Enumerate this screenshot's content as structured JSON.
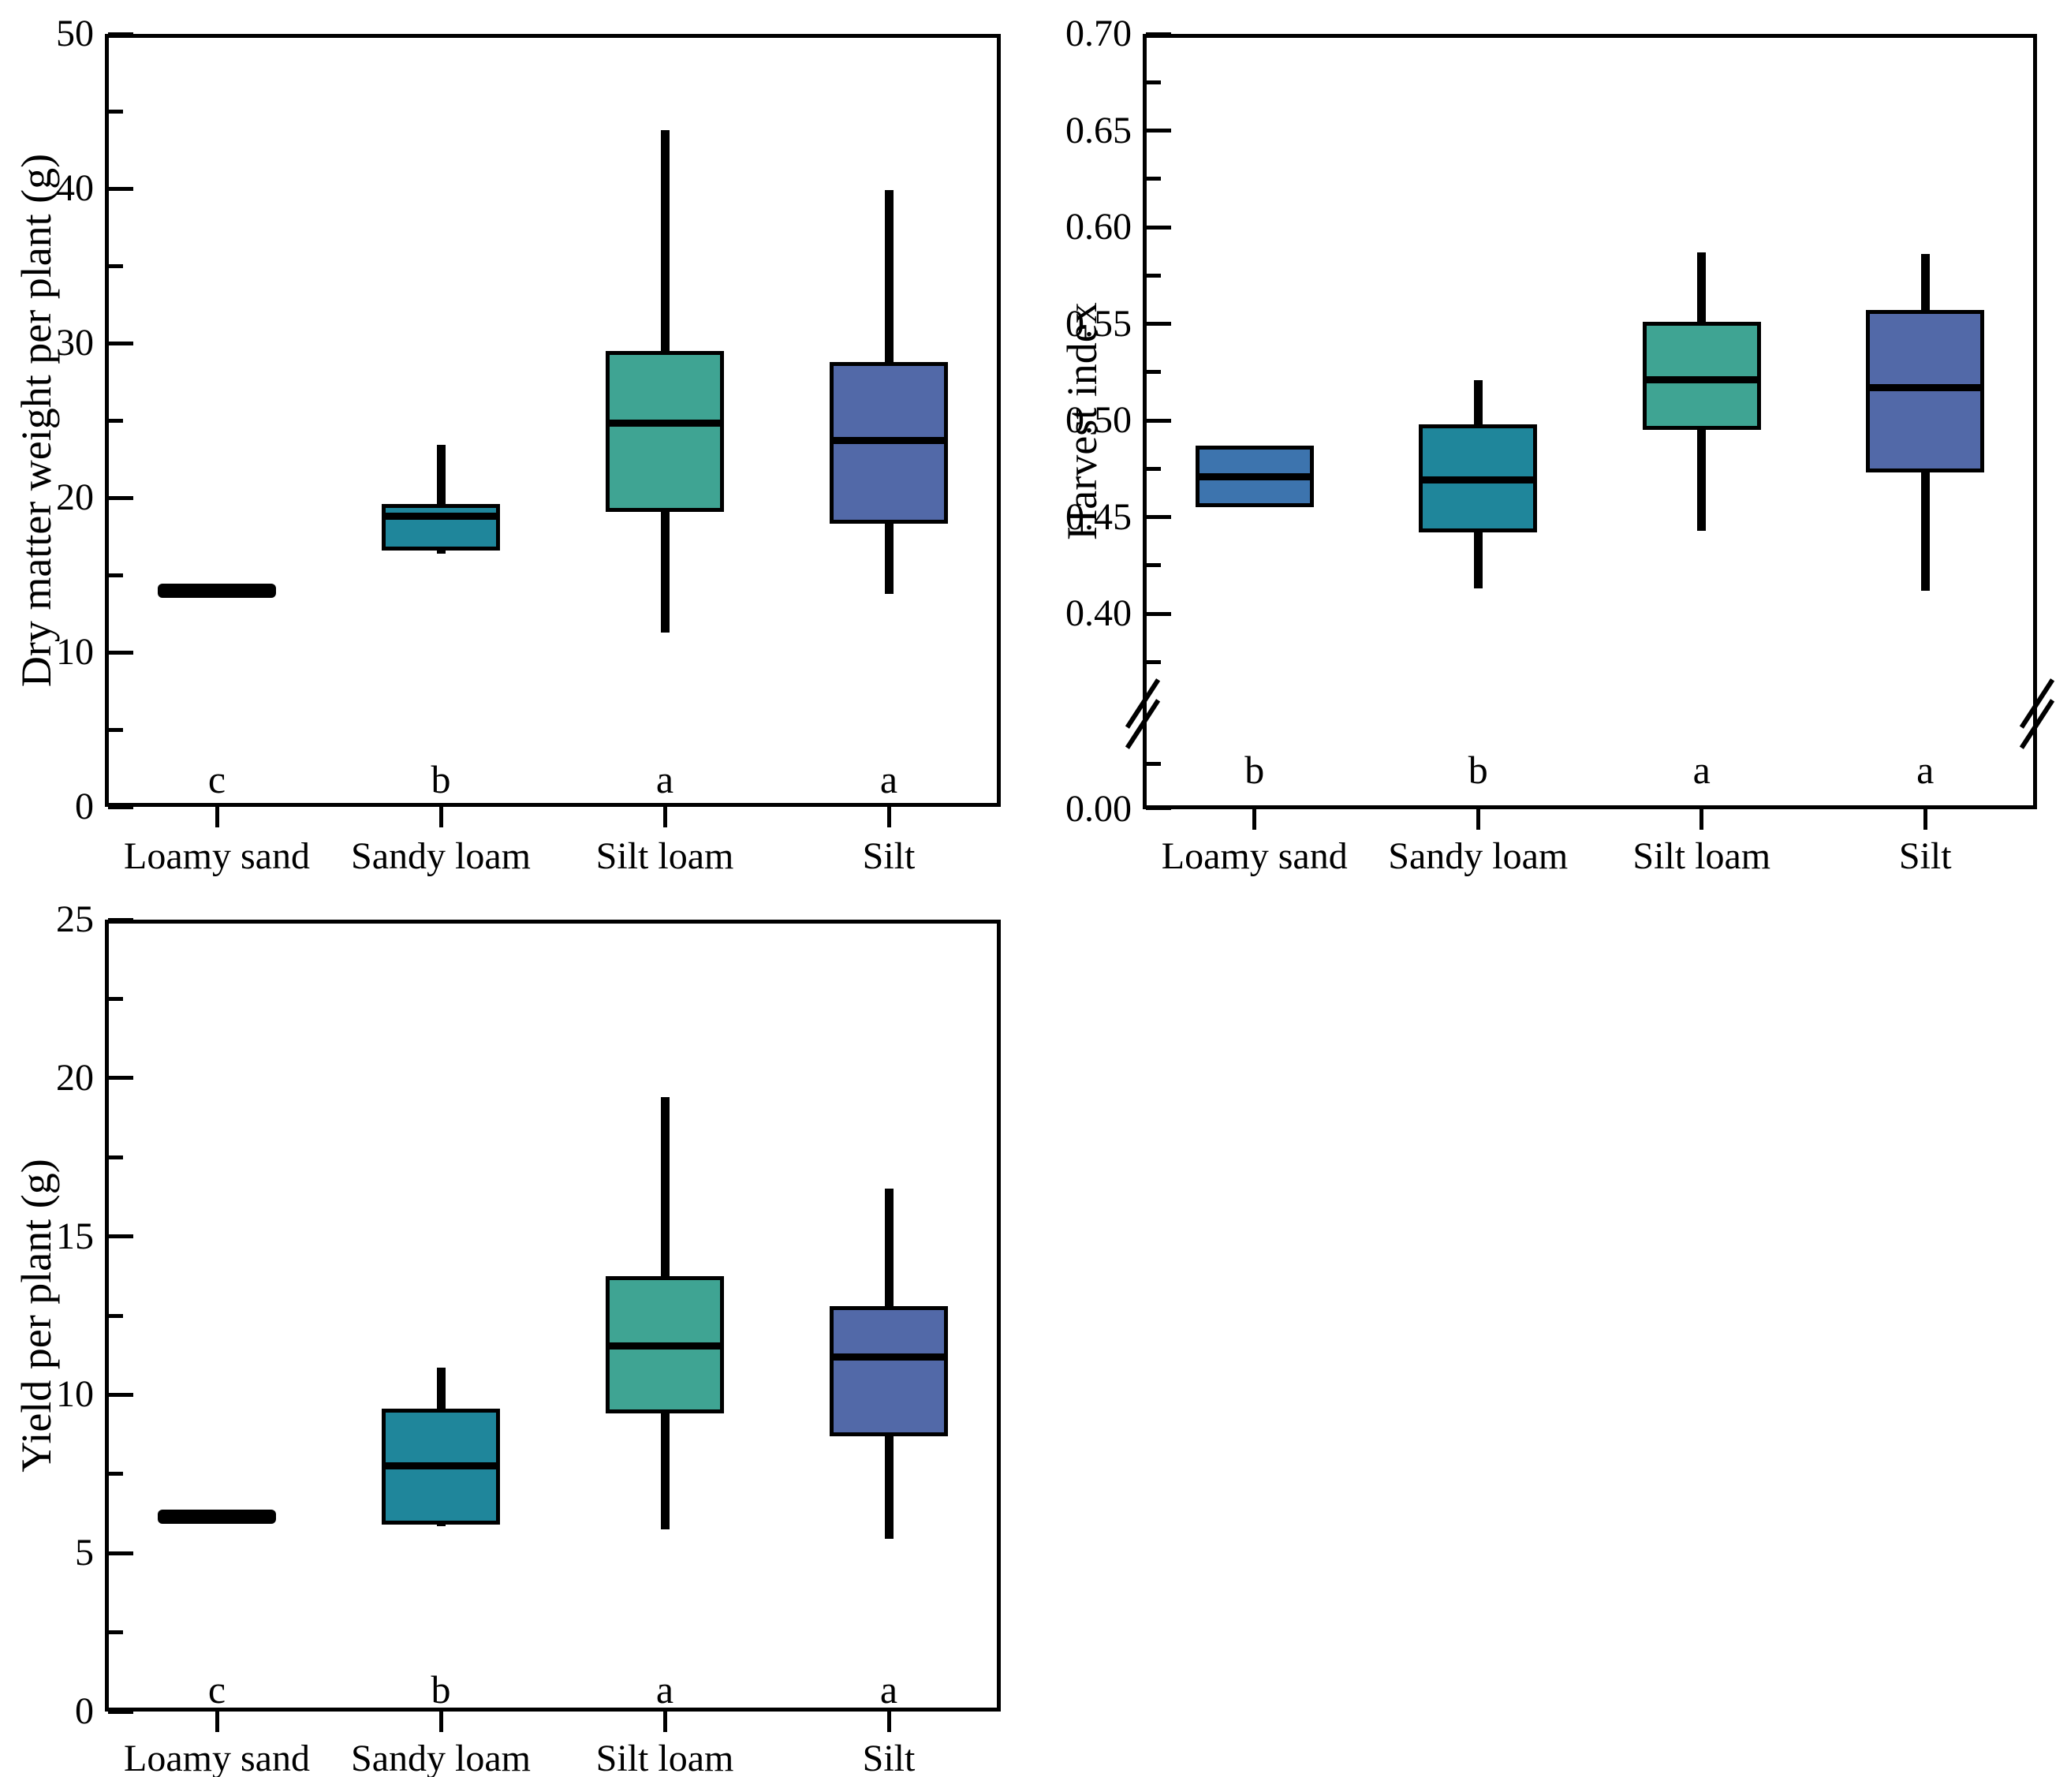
{
  "figure": {
    "background": "#ffffff",
    "axis_color": "#000000",
    "box_colors": {
      "loamy_sand": "#3d74ae",
      "sandy_loam": "#1f869b",
      "silt_loam": "#3fa493",
      "silt": "#5269a8"
    }
  },
  "chart_data": [
    {
      "id": "dry-matter",
      "type": "box",
      "title": "",
      "xlabel": "",
      "ylabel": "Dry matter weight per plant (g)",
      "ylim": [
        0,
        50
      ],
      "yticks": [
        {
          "v": 0,
          "label": "0"
        },
        {
          "v": 10,
          "label": "10"
        },
        {
          "v": 20,
          "label": "20"
        },
        {
          "v": 30,
          "label": "30"
        },
        {
          "v": 40,
          "label": "40"
        },
        {
          "v": 50,
          "label": "50"
        }
      ],
      "yminor": [
        5,
        15,
        25,
        35,
        45
      ],
      "categories": [
        "Loamy sand",
        "Sandy loam",
        "Silt loam",
        "Silt"
      ],
      "sig_letters": [
        "c",
        "b",
        "a",
        "a"
      ],
      "grid": false,
      "legend": false,
      "boxes": [
        {
          "category": "Loamy sand",
          "flat_value": 14.0,
          "color": "#000000"
        },
        {
          "category": "Sandy loam",
          "q1": 16.6,
          "median": 18.8,
          "q3": 19.6,
          "whisker_low": 16.4,
          "whisker_high": 23.4,
          "color": "#1f869b"
        },
        {
          "category": "Silt loam",
          "q1": 19.1,
          "median": 24.8,
          "q3": 29.5,
          "whisker_low": 11.3,
          "whisker_high": 43.8,
          "color": "#3fa493"
        },
        {
          "category": "Silt",
          "q1": 18.3,
          "median": 23.7,
          "q3": 28.8,
          "whisker_low": 13.8,
          "whisker_high": 39.9,
          "color": "#5269a8"
        }
      ]
    },
    {
      "id": "harvest-index",
      "type": "box",
      "title": "",
      "xlabel": "",
      "ylabel": "Harvest index",
      "ylim_upper": [
        0.4,
        0.7
      ],
      "axis_break": {
        "enabled": true,
        "bottom_label": "0.00"
      },
      "yticks": [
        {
          "v": 0.4,
          "label": "0.40"
        },
        {
          "v": 0.45,
          "label": "0.45"
        },
        {
          "v": 0.5,
          "label": "0.50"
        },
        {
          "v": 0.55,
          "label": "0.55"
        },
        {
          "v": 0.6,
          "label": "0.60"
        },
        {
          "v": 0.65,
          "label": "0.65"
        },
        {
          "v": 0.7,
          "label": "0.70"
        }
      ],
      "yminor": [
        0.375,
        0.425,
        0.475,
        0.525,
        0.575,
        0.625,
        0.675
      ],
      "categories": [
        "Loamy sand",
        "Sandy loam",
        "Silt loam",
        "Silt"
      ],
      "sig_letters": [
        "b",
        "b",
        "a",
        "a"
      ],
      "grid": false,
      "legend": false,
      "boxes": [
        {
          "category": "Loamy sand",
          "q1": 0.455,
          "median": 0.471,
          "q3": 0.487,
          "whisker_low": null,
          "whisker_high": null,
          "color": "#3d74ae"
        },
        {
          "category": "Sandy loam",
          "q1": 0.442,
          "median": 0.469,
          "q3": 0.498,
          "whisker_low": 0.413,
          "whisker_high": 0.521,
          "color": "#1f869b"
        },
        {
          "category": "Silt loam",
          "q1": 0.495,
          "median": 0.521,
          "q3": 0.551,
          "whisker_low": 0.443,
          "whisker_high": 0.587,
          "color": "#3fa493"
        },
        {
          "category": "Silt",
          "q1": 0.473,
          "median": 0.517,
          "q3": 0.557,
          "whisker_low": 0.412,
          "whisker_high": 0.586,
          "color": "#5269a8"
        }
      ]
    },
    {
      "id": "yield",
      "type": "box",
      "title": "",
      "xlabel": "",
      "ylabel": "Yield per plant (g)",
      "ylim": [
        0,
        25
      ],
      "yticks": [
        {
          "v": 0,
          "label": "0"
        },
        {
          "v": 5,
          "label": "5"
        },
        {
          "v": 10,
          "label": "10"
        },
        {
          "v": 15,
          "label": "15"
        },
        {
          "v": 20,
          "label": "20"
        },
        {
          "v": 25,
          "label": "25"
        }
      ],
      "yminor": [
        2.5,
        7.5,
        12.5,
        17.5,
        22.5
      ],
      "categories": [
        "Loamy sand",
        "Sandy loam",
        "Silt loam",
        "Silt"
      ],
      "sig_letters": [
        "c",
        "b",
        "a",
        "a"
      ],
      "grid": false,
      "legend": false,
      "boxes": [
        {
          "category": "Loamy sand",
          "flat_value": 6.15,
          "color": "#000000"
        },
        {
          "category": "Sandy loam",
          "q1": 5.9,
          "median": 7.75,
          "q3": 9.55,
          "whisker_low": 5.85,
          "whisker_high": 10.85,
          "color": "#1f869b"
        },
        {
          "category": "Silt loam",
          "q1": 9.4,
          "median": 11.55,
          "q3": 13.75,
          "whisker_low": 5.75,
          "whisker_high": 19.4,
          "color": "#3fa493"
        },
        {
          "category": "Silt",
          "q1": 8.7,
          "median": 11.2,
          "q3": 12.8,
          "whisker_low": 5.45,
          "whisker_high": 16.5,
          "color": "#5269a8"
        }
      ]
    }
  ]
}
